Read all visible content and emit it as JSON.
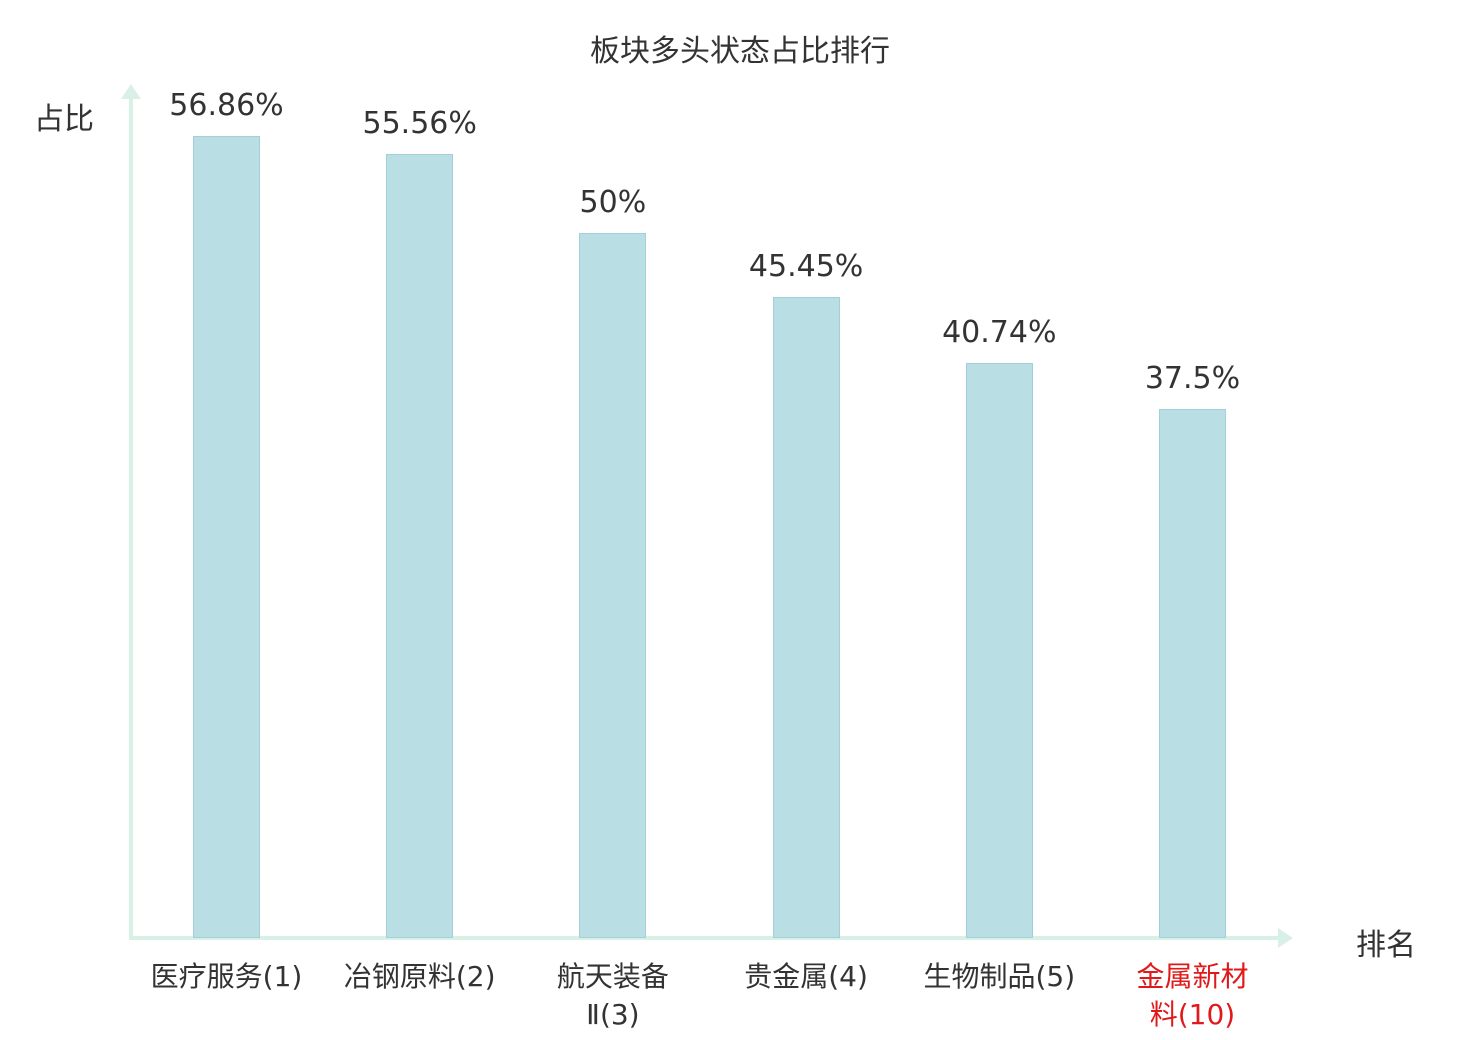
{
  "chart_data": {
    "type": "bar",
    "title": "板块多头状态占比排行",
    "xlabel": "排名",
    "ylabel": "占比",
    "categories": [
      "医疗服务(1)",
      "冶钢原料(2)",
      "航天装备Ⅱ(3)",
      "贵金属(4)",
      "生物制品(5)",
      "金属新材料(10)"
    ],
    "tick_labels": [
      "医疗服务(1)",
      "冶钢原料(2)",
      "航天装备\nⅡ(3)",
      "贵金属(4)",
      "生物制品(5)",
      "金属新材\n料(10)"
    ],
    "values": [
      56.86,
      55.56,
      50,
      45.45,
      40.74,
      37.5
    ],
    "value_labels": [
      "56.86%",
      "55.56%",
      "50%",
      "45.45%",
      "40.74%",
      "37.5%"
    ],
    "ylim": [
      0,
      60
    ],
    "grid": false,
    "legend_position": "none",
    "highlight_index": 5,
    "colors": {
      "bar_fill": "#b9dee4",
      "bar_border": "#a3d0d8",
      "axis": "#d9f0e7",
      "text": "#333333",
      "highlight_label": "#e01a1a"
    }
  }
}
